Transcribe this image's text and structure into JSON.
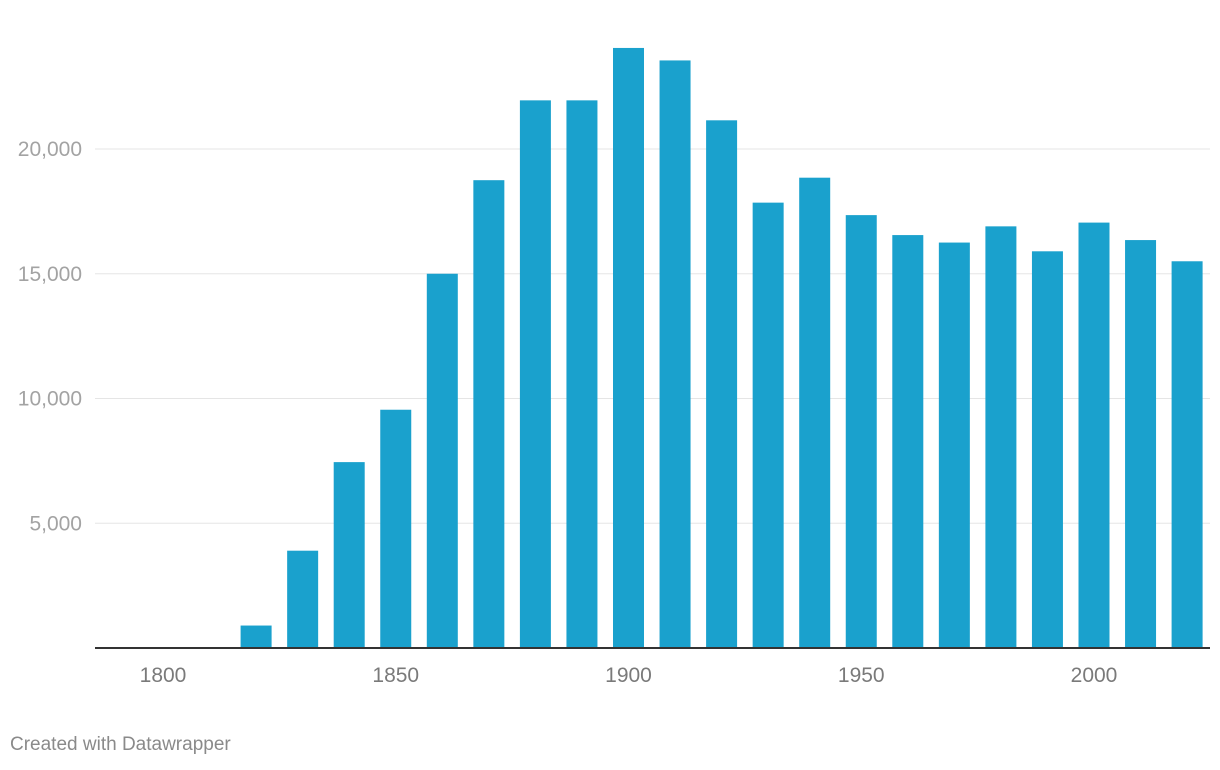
{
  "chart_data": {
    "type": "bar",
    "title": "",
    "xlabel": "",
    "ylabel": "",
    "colors": {
      "bar": "#1aa1cd",
      "grid": "#e5e5e5",
      "axis": "#333333"
    },
    "x": [
      1800,
      1810,
      1820,
      1830,
      1840,
      1850,
      1860,
      1870,
      1880,
      1890,
      1900,
      1910,
      1920,
      1930,
      1940,
      1950,
      1960,
      1970,
      1980,
      1990,
      2000,
      2010,
      2020
    ],
    "values": [
      0,
      0,
      900,
      3900,
      7450,
      9550,
      15000,
      18750,
      21950,
      21950,
      24050,
      23550,
      21150,
      17850,
      18850,
      17350,
      16550,
      16250,
      16900,
      15900,
      17050,
      16350,
      15500
    ],
    "ylim": [
      0,
      25000
    ],
    "yticks": [
      5000,
      10000,
      15000,
      20000
    ],
    "ytick_labels": [
      "5,000",
      "10,000",
      "15,000",
      "20,000"
    ],
    "xticks": [
      1800,
      1850,
      1900,
      1950,
      2000
    ],
    "xtick_labels": [
      "1800",
      "1850",
      "1900",
      "1950",
      "2000"
    ],
    "grid": true
  },
  "footer": {
    "credit": "Created with Datawrapper"
  }
}
